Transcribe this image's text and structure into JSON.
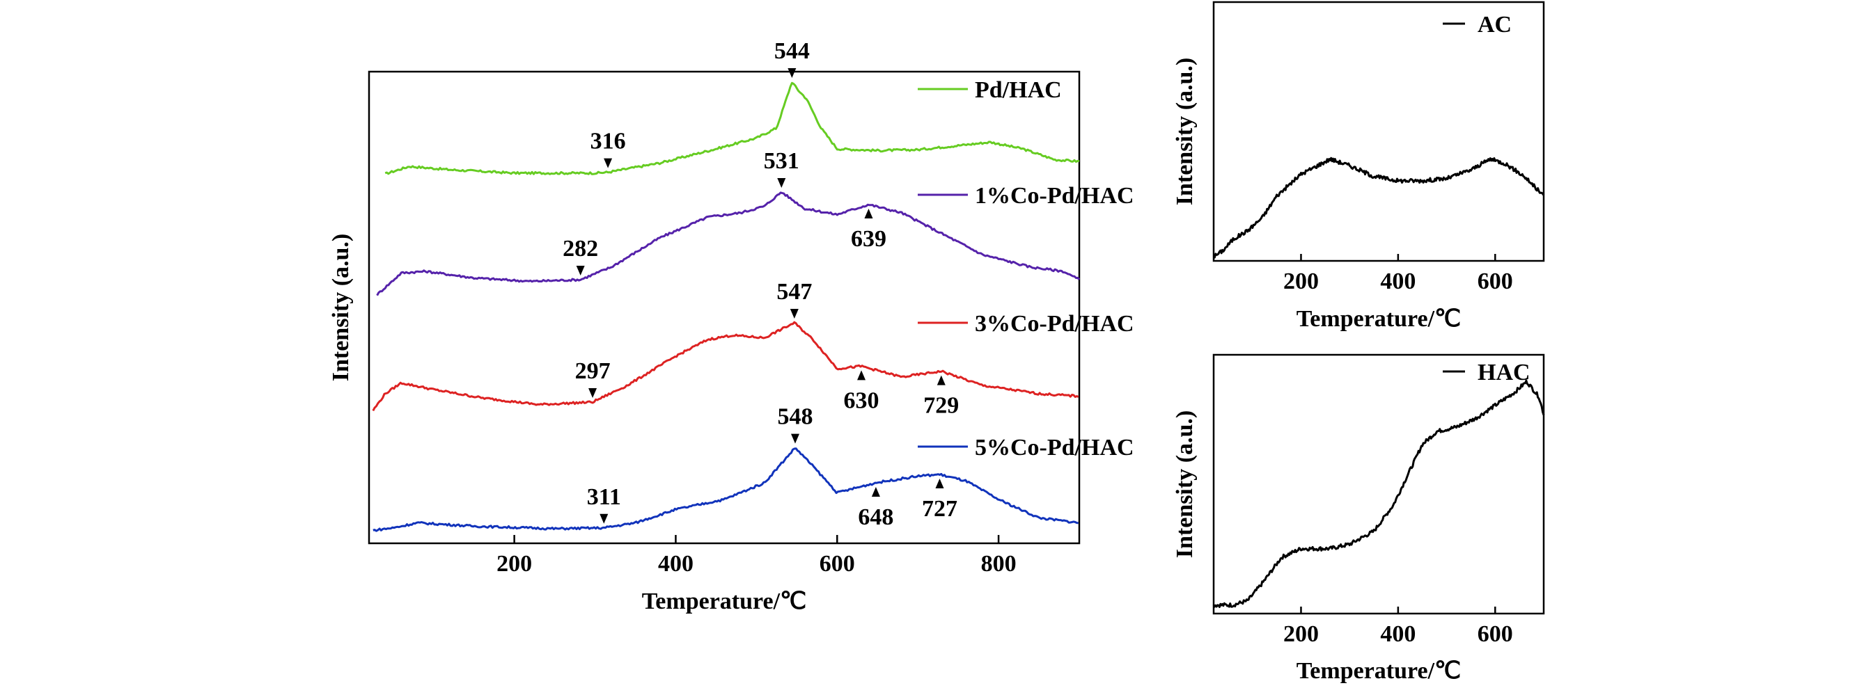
{
  "chart_data": [
    {
      "type": "line",
      "panel": "main",
      "xlabel": "Temperature/℃",
      "ylabel": "Intensity (a.u.)",
      "xlim": [
        20,
        900
      ],
      "xticks": [
        200,
        400,
        600,
        800
      ],
      "y_ticks_shown": false,
      "legend": "right, beside each curve",
      "series": [
        {
          "name": "Pd/HAC",
          "color": "#66cc22",
          "offset": 3,
          "start_x": 40,
          "peaks": [
            {
              "label": "316",
              "x": 316
            },
            {
              "label": "544",
              "x": 544
            }
          ],
          "points": [
            [
              40,
              0.05
            ],
            [
              70,
              0.14
            ],
            [
              120,
              0.1
            ],
            [
              200,
              0.06
            ],
            [
              300,
              0.06
            ],
            [
              316,
              0.07
            ],
            [
              380,
              0.18
            ],
            [
              450,
              0.35
            ],
            [
              500,
              0.48
            ],
            [
              525,
              0.6
            ],
            [
              544,
              1.15
            ],
            [
              552,
              1.05
            ],
            [
              562,
              0.95
            ],
            [
              580,
              0.6
            ],
            [
              600,
              0.35
            ],
            [
              650,
              0.33
            ],
            [
              700,
              0.34
            ],
            [
              760,
              0.4
            ],
            [
              790,
              0.43
            ],
            [
              830,
              0.35
            ],
            [
              870,
              0.22
            ],
            [
              900,
              0.2
            ]
          ]
        },
        {
          "name": "1%Co-Pd/HAC",
          "color": "#5522aa",
          "offset": 2,
          "start_x": 30,
          "peaks": [
            {
              "label": "282",
              "x": 282
            },
            {
              "label": "531",
              "x": 531
            },
            {
              "label": "639",
              "x": 639
            }
          ],
          "points": [
            [
              30,
              0.02
            ],
            [
              60,
              0.28
            ],
            [
              90,
              0.3
            ],
            [
              150,
              0.22
            ],
            [
              220,
              0.18
            ],
            [
              282,
              0.2
            ],
            [
              320,
              0.35
            ],
            [
              380,
              0.7
            ],
            [
              440,
              0.95
            ],
            [
              480,
              1.0
            ],
            [
              510,
              1.08
            ],
            [
              531,
              1.25
            ],
            [
              560,
              1.05
            ],
            [
              600,
              0.98
            ],
            [
              639,
              1.1
            ],
            [
              680,
              1.0
            ],
            [
              720,
              0.8
            ],
            [
              780,
              0.5
            ],
            [
              840,
              0.35
            ],
            [
              880,
              0.3
            ],
            [
              900,
              0.2
            ]
          ]
        },
        {
          "name": "3%Co-Pd/HAC",
          "color": "#dd2222",
          "offset": 1,
          "start_x": 25,
          "peaks": [
            {
              "label": "297",
              "x": 297
            },
            {
              "label": "547",
              "x": 547
            },
            {
              "label": "630",
              "x": 630
            },
            {
              "label": "729",
              "x": 729
            }
          ],
          "points": [
            [
              25,
              0.05
            ],
            [
              40,
              0.25
            ],
            [
              60,
              0.38
            ],
            [
              100,
              0.3
            ],
            [
              160,
              0.2
            ],
            [
              230,
              0.12
            ],
            [
              297,
              0.15
            ],
            [
              340,
              0.35
            ],
            [
              400,
              0.7
            ],
            [
              440,
              0.9
            ],
            [
              470,
              0.95
            ],
            [
              510,
              0.92
            ],
            [
              547,
              1.1
            ],
            [
              570,
              0.9
            ],
            [
              600,
              0.55
            ],
            [
              630,
              0.58
            ],
            [
              680,
              0.45
            ],
            [
              729,
              0.52
            ],
            [
              780,
              0.35
            ],
            [
              850,
              0.25
            ],
            [
              900,
              0.22
            ]
          ]
        },
        {
          "name": "5%Co-Pd/HAC",
          "color": "#1133bb",
          "offset": 0,
          "start_x": 25,
          "peaks": [
            {
              "label": "311",
              "x": 311
            },
            {
              "label": "548",
              "x": 548
            },
            {
              "label": "648",
              "x": 648
            },
            {
              "label": "727",
              "x": 727
            }
          ],
          "points": [
            [
              25,
              0.03
            ],
            [
              50,
              0.06
            ],
            [
              80,
              0.12
            ],
            [
              150,
              0.08
            ],
            [
              250,
              0.05
            ],
            [
              311,
              0.06
            ],
            [
              350,
              0.12
            ],
            [
              400,
              0.28
            ],
            [
              460,
              0.4
            ],
            [
              510,
              0.6
            ],
            [
              548,
              1.02
            ],
            [
              570,
              0.8
            ],
            [
              600,
              0.48
            ],
            [
              648,
              0.6
            ],
            [
              700,
              0.68
            ],
            [
              727,
              0.7
            ],
            [
              760,
              0.62
            ],
            [
              800,
              0.4
            ],
            [
              850,
              0.18
            ],
            [
              900,
              0.12
            ]
          ]
        }
      ]
    },
    {
      "type": "line",
      "panel": "AC",
      "xlabel": "Temperature/℃",
      "ylabel": "Intensity (a.u.)",
      "xlim": [
        20,
        700
      ],
      "xticks": [
        200,
        400,
        600
      ],
      "legend": "top-right",
      "series": [
        {
          "name": "AC",
          "color": "#000000",
          "points": [
            [
              20,
              0.0
            ],
            [
              40,
              0.03
            ],
            [
              60,
              0.08
            ],
            [
              90,
              0.12
            ],
            [
              120,
              0.18
            ],
            [
              150,
              0.28
            ],
            [
              200,
              0.38
            ],
            [
              260,
              0.45
            ],
            [
              300,
              0.42
            ],
            [
              350,
              0.37
            ],
            [
              400,
              0.35
            ],
            [
              450,
              0.35
            ],
            [
              500,
              0.36
            ],
            [
              550,
              0.4
            ],
            [
              590,
              0.45
            ],
            [
              620,
              0.43
            ],
            [
              660,
              0.37
            ],
            [
              700,
              0.28
            ]
          ]
        }
      ]
    },
    {
      "type": "line",
      "panel": "HAC",
      "xlabel": "Temperature/℃",
      "ylabel": "Intensity (a.u.)",
      "xlim": [
        20,
        700
      ],
      "xticks": [
        200,
        400,
        600
      ],
      "legend": "top-right",
      "series": [
        {
          "name": "HAC",
          "color": "#000000",
          "points": [
            [
              20,
              0.02
            ],
            [
              60,
              0.02
            ],
            [
              90,
              0.04
            ],
            [
              120,
              0.12
            ],
            [
              160,
              0.24
            ],
            [
              200,
              0.28
            ],
            [
              260,
              0.28
            ],
            [
              300,
              0.3
            ],
            [
              350,
              0.36
            ],
            [
              390,
              0.48
            ],
            [
              420,
              0.62
            ],
            [
              450,
              0.76
            ],
            [
              480,
              0.82
            ],
            [
              520,
              0.84
            ],
            [
              560,
              0.88
            ],
            [
              600,
              0.94
            ],
            [
              640,
              1.0
            ],
            [
              665,
              1.05
            ],
            [
              690,
              0.98
            ],
            [
              700,
              0.9
            ]
          ]
        }
      ]
    }
  ]
}
